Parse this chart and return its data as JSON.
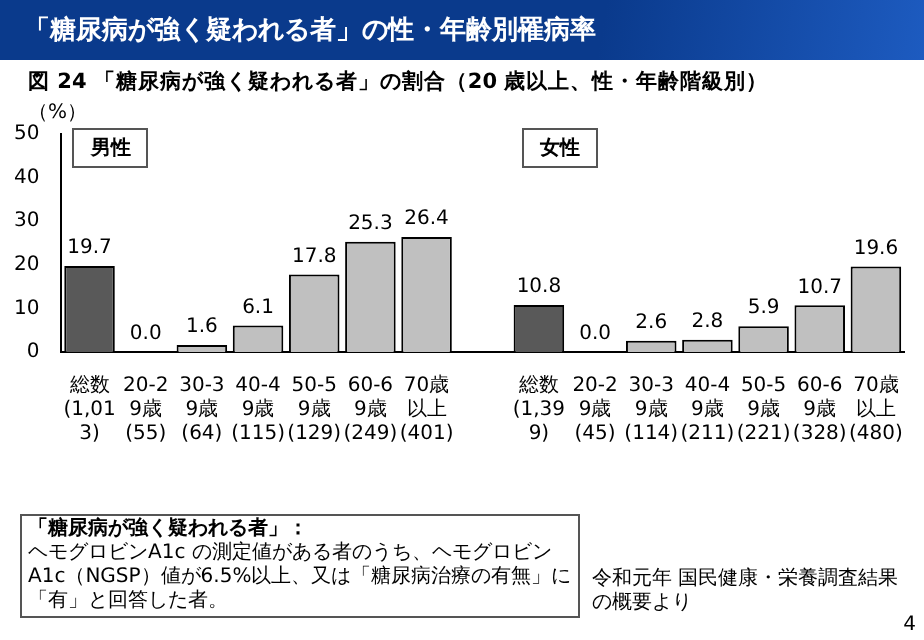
{
  "chart_data": {
    "type": "bar",
    "title": "「糖尿病が強く疑われる者」の性・年齢別罹病率",
    "subtitle": "図 24 「糖尿病が強く疑われる者」の割合（20 歳以上、性・年齢階級別）",
    "ylabel": "（%）",
    "categories": [
      "総数\n(1,013)",
      "20-29歳\n(55)",
      "30-39歳\n(64)",
      "40-49歳\n(115)",
      "50-59歳\n(129)",
      "60-69歳\n(249)",
      "70歳以上\n(401)",
      null,
      "総数\n(1,399)",
      "20-29歳\n(45)",
      "30-39歳\n(114)",
      "40-49歳\n(211)",
      "50-59歳\n(221)",
      "60-69歳\n(328)",
      "70歳以上\n(480)"
    ],
    "values": [
      19.7,
      0.0,
      1.6,
      6.1,
      17.8,
      25.3,
      26.4,
      null,
      10.8,
      0.0,
      2.6,
      2.8,
      5.9,
      10.7,
      19.6
    ],
    "value_labels": [
      "19.7",
      "0.0",
      "1.6",
      "6.1",
      "17.8",
      "25.3",
      "26.4",
      null,
      "10.8",
      "0.0",
      "2.6",
      "2.8",
      "5.9",
      "10.7",
      "19.6"
    ],
    "colors": [
      "#595959",
      "#c0c0c0",
      "#c0c0c0",
      "#c0c0c0",
      "#c0c0c0",
      "#c0c0c0",
      "#c0c0c0",
      "#c0c0c0",
      "#595959",
      "#c0c0c0",
      "#c0c0c0",
      "#c0c0c0",
      "#c0c0c0",
      "#c0c0c0",
      "#c0c0c0"
    ],
    "ylim": [
      0,
      50
    ],
    "yticks": [
      0,
      10,
      20,
      30,
      40,
      50
    ],
    "grid": false,
    "legend": false,
    "annotations": [
      "男性",
      "女性",
      "「糖尿病が強く疑われる者」：",
      "ヘモグロビンA1c の測定値がある者のうち、ヘモグロビンA1c（NGSP）値が6.5%以上、又は「糖尿病治療の有無」に「有」と回答した者。",
      "令和元年 国民健康・栄養調査結果の概要より",
      "4"
    ]
  }
}
